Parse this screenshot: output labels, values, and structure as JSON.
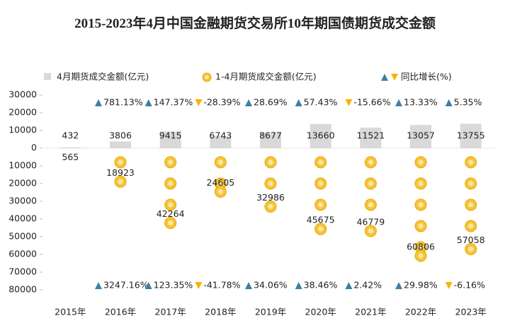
{
  "chart_data": {
    "type": "bar",
    "title": "2015-2023年4月中国金融期货交易所10年期国债期货成交金额",
    "categories": [
      "2015年",
      "2016年",
      "2017年",
      "2018年",
      "2019年",
      "2020年",
      "2021年",
      "2022年",
      "2023年"
    ],
    "series": [
      {
        "name": "4月期货成交金额(亿元)",
        "color": "#d9d9d9",
        "values": [
          432,
          3806,
          9415,
          6743,
          8677,
          13660,
          11521,
          13057,
          13755
        ]
      },
      {
        "name": "1-4月期货成交金额(亿元)",
        "color": "#f7c33c",
        "values": [
          -565,
          -18923,
          -42264,
          -24605,
          -32986,
          -45675,
          -46779,
          -60806,
          -57058
        ],
        "value_labels": [
          "565",
          "18923",
          "42264",
          "24605",
          "32986",
          "45675",
          "46779",
          "60806",
          "57058"
        ]
      }
    ],
    "growth": {
      "name": "同比增长(%)",
      "up_color": "#3f7ea6",
      "down_color": "#f5b400",
      "monthly": {
        "values": [
          null,
          781.13,
          147.37,
          -28.39,
          28.69,
          57.43,
          -15.66,
          13.33,
          5.35
        ],
        "value_labels": [
          null,
          "781.13%",
          "147.37%",
          "-28.39%",
          "28.69%",
          "57.43%",
          "-15.66%",
          "13.33%",
          "5.35%"
        ]
      },
      "cumulative": {
        "values": [
          null,
          3247.16,
          123.35,
          -41.78,
          34.06,
          38.46,
          2.42,
          29.98,
          -6.16
        ],
        "value_labels": [
          null,
          "3247.16%",
          "123.35%",
          "-41.78%",
          "34.06%",
          "38.46%",
          "2.42%",
          "29.98%",
          "-6.16%"
        ]
      }
    },
    "ylim": [
      -80000,
      30000
    ],
    "yticks": [
      30000,
      20000,
      10000,
      0,
      {
        "value": -10000,
        "label": "10000"
      },
      {
        "value": -20000,
        "label": "20000"
      },
      {
        "value": -30000,
        "label": "30000"
      },
      {
        "value": -40000,
        "label": "40000"
      },
      {
        "value": -50000,
        "label": "50000"
      },
      {
        "value": -60000,
        "label": "60000"
      },
      {
        "value": -70000,
        "label": "70000"
      },
      {
        "value": -80000,
        "label": "80000"
      }
    ]
  }
}
